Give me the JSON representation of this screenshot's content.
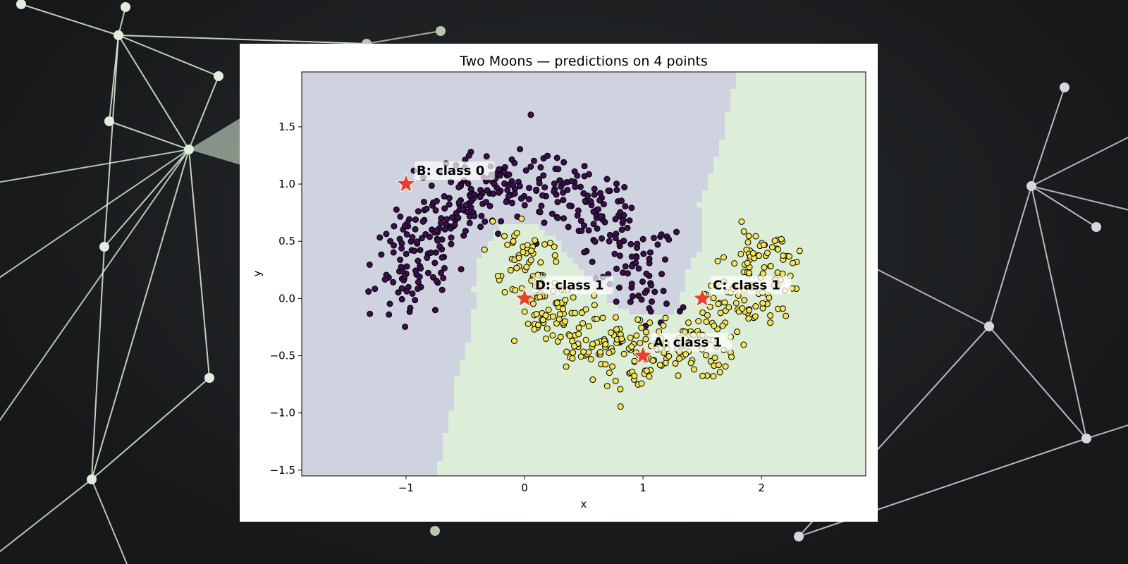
{
  "background": {
    "color": "#16181a",
    "network_colors": [
      "#dfeedd",
      "#b9c7b0",
      "#d6d6e3"
    ]
  },
  "chart_data": {
    "type": "scatter",
    "title": "Two Moons — predictions on 4 points",
    "xlabel": "x",
    "ylabel": "y",
    "xlim": [
      -1.88,
      2.88
    ],
    "ylim": [
      -1.55,
      1.98
    ],
    "xticks": [
      -1,
      0,
      1,
      2
    ],
    "yticks": [
      -1.5,
      -1.0,
      -0.5,
      0.0,
      0.5,
      1.0,
      1.5
    ],
    "xtick_labels": [
      "−1",
      "0",
      "1",
      "2"
    ],
    "ytick_labels": [
      "−1.5",
      "−1.0",
      "−0.5",
      "0.0",
      "0.5",
      "1.0",
      "1.5"
    ],
    "legend": "none",
    "grid": false,
    "colors": {
      "class_0_point": "#3b0f4f",
      "class_1_point": "#f2e55c",
      "class_0_region": "#cfd3e0",
      "class_1_region": "#dcedd8",
      "query_marker": "#e8412b"
    },
    "series": [
      {
        "name": "class 0",
        "description": "upper moon (dark purple points)",
        "moon": {
          "cx": 0,
          "cy": 0,
          "r": 1,
          "arc_start_deg": 0,
          "arc_end_deg": 180
        },
        "n_points": 400,
        "noise": 0.16
      },
      {
        "name": "class 1",
        "description": "lower moon (yellow points)",
        "moon": {
          "cx": 1,
          "cy": 0.5,
          "r": 1,
          "arc_start_deg": 180,
          "arc_end_deg": 360
        },
        "n_points": 400,
        "noise": 0.16
      }
    ],
    "predictions": [
      {
        "label": "A: class 1",
        "x": 1.0,
        "y": -0.5,
        "class": 1
      },
      {
        "label": "B: class 0",
        "x": -1.0,
        "y": 1.0,
        "class": 0
      },
      {
        "label": "C: class 1",
        "x": 1.5,
        "y": 0.0,
        "class": 1
      },
      {
        "label": "D: class 1",
        "x": 0.0,
        "y": 0.0,
        "class": 1
      }
    ]
  }
}
